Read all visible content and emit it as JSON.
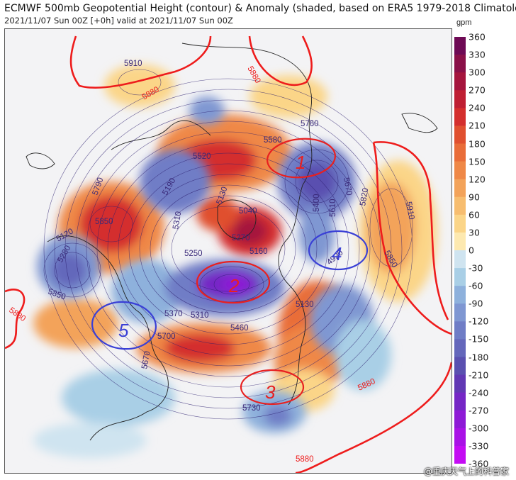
{
  "header": {
    "title": "ECMWF 500mb Geopotential Height (contour) & Anomaly (shaded, based on ERA5 1979-2018 Climatology)",
    "subtitle": "2021/11/07 Sun 00Z [+0h] valid at 2021/11/07 Sun 00Z"
  },
  "colorbar": {
    "unit": "gpm",
    "labels": [
      "360",
      "330",
      "300",
      "270",
      "240",
      "210",
      "180",
      "150",
      "120",
      "90",
      "60",
      "30",
      "0",
      "-30",
      "-60",
      "-90",
      "-120",
      "-150",
      "-180",
      "-210",
      "-240",
      "-270",
      "-300",
      "-330",
      "-360"
    ],
    "colors": [
      "#6e0a55",
      "#8a1048",
      "#a5153d",
      "#bf1f33",
      "#d42f2d",
      "#e0502f",
      "#e96d39",
      "#ef8847",
      "#f3a35a",
      "#f7bd6f",
      "#fbd588",
      "#fde9b0",
      "#ffffff",
      "#cfe4f0",
      "#a9cfe6",
      "#8eb1dc",
      "#7f97d2",
      "#6f7dc6",
      "#6467bb",
      "#5a50b0",
      "#6138b4",
      "#7526c5",
      "#8e1ad6",
      "#a912e6",
      "#c40cf3"
    ]
  },
  "map": {
    "contour_labels": [
      "5910",
      "5880",
      "5880",
      "5880",
      "5880",
      "5880",
      "5910",
      "5760",
      "5580",
      "5520",
      "5790",
      "5850",
      "5190",
      "5310",
      "5130",
      "5250",
      "5270",
      "5040",
      "5160",
      "5400",
      "5670",
      "5610",
      "5820",
      "5850",
      "5120",
      "5280",
      "5370",
      "5310",
      "5460",
      "5700",
      "5670",
      "5730",
      "5130",
      "4920",
      "5850"
    ],
    "annotations": [
      "1",
      "2",
      "3",
      "4",
      "5"
    ],
    "colors": {
      "ridge_line": "#ee1c1c",
      "circle_red": "#e82020",
      "circle_blue": "#3a40d6",
      "contour": "#2a1c6e",
      "coastline": "#222222"
    }
  },
  "watermark": "@重庆天气上的科普家"
}
